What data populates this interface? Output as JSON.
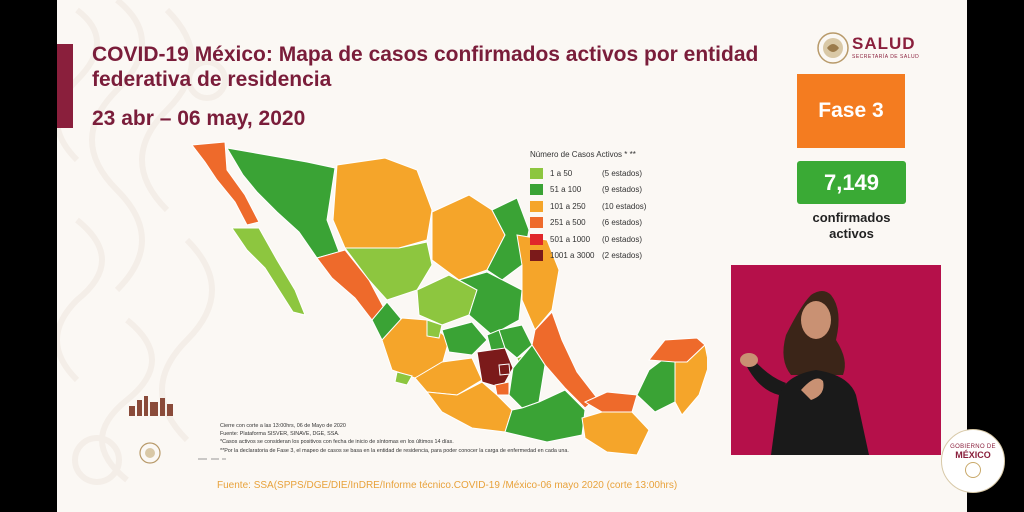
{
  "slide": {
    "title": "COVID-19 México: Mapa de casos confirmados activos por entidad federativa de residencia",
    "date_range": "23 abr – 06 may, 2020",
    "logo_text": "SALUD",
    "logo_sub": "SECRETARÍA DE SALUD",
    "fase_label": "Fase 3",
    "active_count": "7,149",
    "active_label": "confirmados activos",
    "legend": {
      "title": "Número de Casos Activos * **",
      "items": [
        {
          "range": "1 a 50",
          "count": "(5 estados)",
          "color": "#8dc63f"
        },
        {
          "range": "51 a 100",
          "count": "(9 estados)",
          "color": "#3aa335"
        },
        {
          "range": "101 a 250",
          "count": "(10 estados)",
          "color": "#f5a52a"
        },
        {
          "range": "251 a 500",
          "count": "(6 estados)",
          "color": "#ee6a2b"
        },
        {
          "range": "501 a 1000",
          "count": "(0 estados)",
          "color": "#e0262a"
        },
        {
          "range": "1001 a 3000",
          "count": "(2 estados)",
          "color": "#7b1a1a"
        }
      ]
    },
    "notes": [
      "Cierre con corte a las 13:00hrs, 06 de Mayo de 2020",
      "Fuente: Plataforma SISVER, SINAVE, DGE, SSA.",
      "*Casos activos se consideran los positivos con fecha de inicio de síntomas en los últimos 14 días.",
      "**Por la declaratoria de Fase 3, el mapeo de casos se basa en la entidad de residencia, para poder conocer la carga de enfermedad en cada una."
    ],
    "source": "Fuente: SSA(SPPS/DGE/DIE/InDRE/Informe técnico.COVID-19 /México-06 mayo 2020 (corte 13:00hrs)"
  },
  "gobierno": {
    "top": "GOBIERNO DE",
    "main": "MÉXICO"
  }
}
